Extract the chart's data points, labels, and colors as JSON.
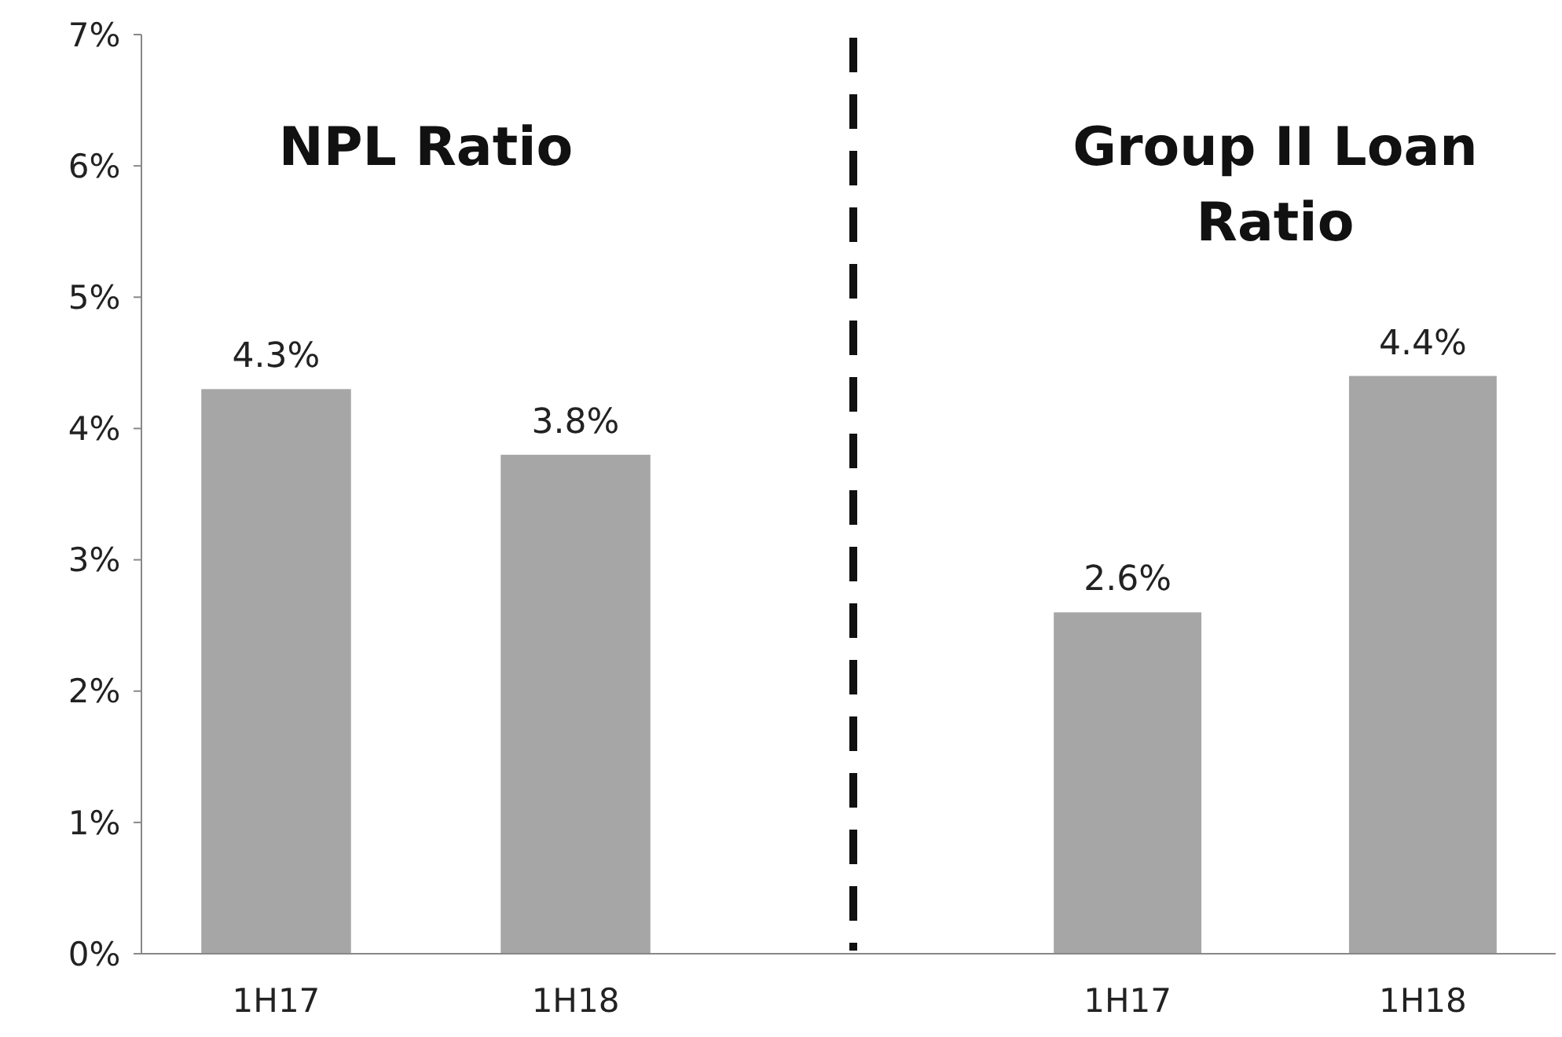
{
  "chart_data": [
    {
      "type": "bar",
      "title": "NPL Ratio",
      "categories": [
        "1H17",
        "1H18"
      ],
      "values": [
        4.3,
        3.8
      ],
      "value_labels": [
        "4.3%",
        "3.8%"
      ],
      "color": "#a6a6a6",
      "ylim": [
        0,
        7
      ],
      "yticks": [
        {
          "value": 0,
          "label": "0%"
        },
        {
          "value": 1,
          "label": "1%"
        },
        {
          "value": 2,
          "label": "2%"
        },
        {
          "value": 3,
          "label": "3%"
        },
        {
          "value": 4,
          "label": "4%"
        },
        {
          "value": 5,
          "label": "5%"
        },
        {
          "value": 6,
          "label": "6%"
        },
        {
          "value": 7,
          "label": "7%"
        }
      ],
      "grid": false
    },
    {
      "type": "bar",
      "title": "Group II Loan Ratio",
      "categories": [
        "1H17",
        "1H18"
      ],
      "values": [
        2.6,
        4.4
      ],
      "value_labels": [
        "2.6%",
        "4.4%"
      ],
      "color": "#a6a6a6",
      "ylim": [
        0,
        7
      ],
      "tick_labels": "x",
      "grid": false
    }
  ]
}
